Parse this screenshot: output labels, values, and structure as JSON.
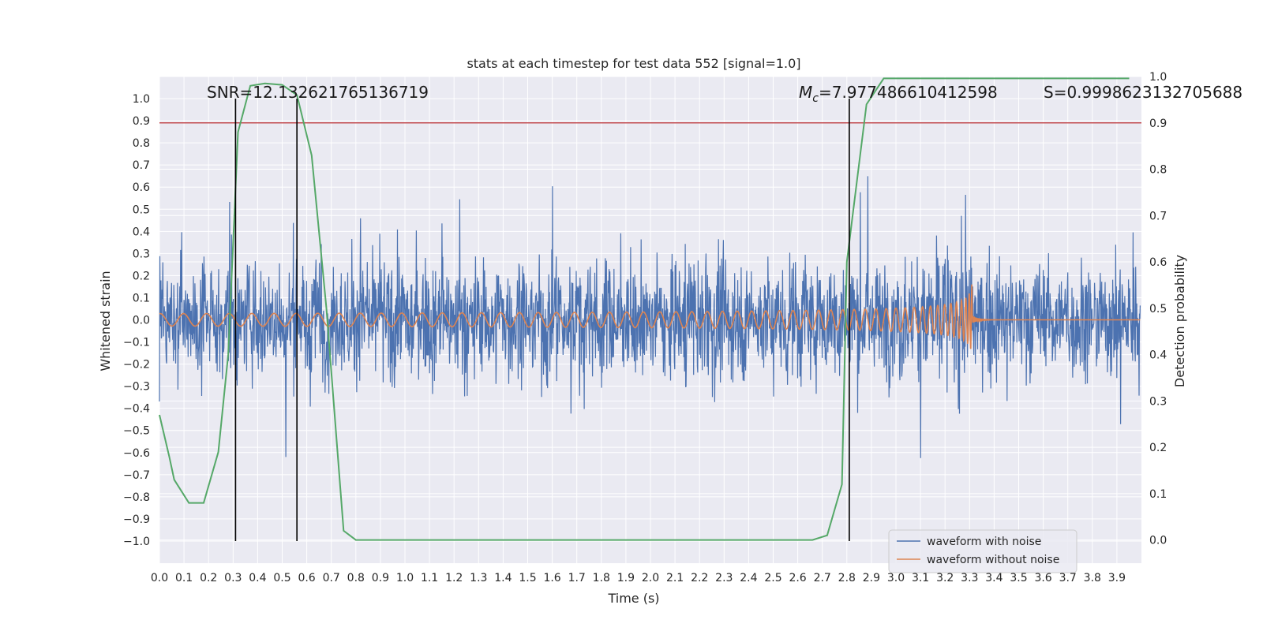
{
  "chart_data": {
    "type": "line",
    "title": "stats at each timestep for test data 552 [signal=1.0]",
    "xlabel": "Time (s)",
    "ylabel": "Whitened strain",
    "y2label": "Detection probability",
    "xlim": [
      0.0,
      4.0
    ],
    "ylim": [
      -1.1,
      1.1
    ],
    "y2lim": [
      -0.05,
      1.0
    ],
    "x_ticks": [
      "0.0",
      "0.1",
      "0.2",
      "0.3",
      "0.4",
      "0.5",
      "0.6",
      "0.7",
      "0.8",
      "0.9",
      "1.0",
      "1.1",
      "1.2",
      "1.3",
      "1.4",
      "1.5",
      "1.6",
      "1.7",
      "1.8",
      "1.9",
      "2.0",
      "2.1",
      "2.2",
      "2.3",
      "2.4",
      "2.5",
      "2.6",
      "2.7",
      "2.8",
      "2.9",
      "3.0",
      "3.1",
      "3.2",
      "3.3",
      "3.4",
      "3.5",
      "3.6",
      "3.7",
      "3.8",
      "3.9"
    ],
    "y_ticks": [
      "1.0",
      "0.9",
      "0.8",
      "0.7",
      "0.6",
      "0.5",
      "0.4",
      "0.3",
      "0.2",
      "0.1",
      "0.0",
      "−0.1",
      "−0.2",
      "−0.3",
      "−0.4",
      "−0.5",
      "−0.6",
      "−0.7",
      "−0.8",
      "−0.9",
      "−1.0"
    ],
    "y2_ticks": [
      "1.0",
      "0.9",
      "0.8",
      "0.7",
      "0.6",
      "0.5",
      "0.4",
      "0.3",
      "0.2",
      "0.1",
      "0.0"
    ],
    "grid": true,
    "legend_position": "bottom-right",
    "series": [
      {
        "name": "waveform with noise",
        "color": "#4c72b0",
        "axis": "left",
        "description": "white-noise strain, roughly within ±0.5 with spikes to ±1.0"
      },
      {
        "name": "waveform without noise",
        "color": "#dd8452",
        "axis": "left",
        "description": "inspiral chirp growing from amplitude ~0.03 to ~0.4, merging near t=3.31 s",
        "merger_time": 3.31
      },
      {
        "name": "detection probability",
        "color": "#55a868",
        "axis": "right",
        "x": [
          0.0,
          0.04,
          0.06,
          0.12,
          0.18,
          0.24,
          0.28,
          0.32,
          0.37,
          0.43,
          0.5,
          0.56,
          0.62,
          0.68,
          0.75,
          0.8,
          1.5,
          2.0,
          2.6,
          2.66,
          2.72,
          2.78,
          2.8,
          2.88,
          2.95,
          3.95
        ],
        "values": [
          0.27,
          0.18,
          0.13,
          0.08,
          0.08,
          0.19,
          0.4,
          0.88,
          0.98,
          0.985,
          0.982,
          0.96,
          0.83,
          0.5,
          0.02,
          0.0,
          0.0,
          0.0,
          0.0,
          0.0,
          0.01,
          0.12,
          0.6,
          0.94,
          0.996,
          0.996
        ]
      },
      {
        "name": "threshold",
        "color": "#c44e52",
        "axis": "right",
        "values": [
          0.9
        ]
      }
    ],
    "vertical_lines": [
      0.31,
      0.56,
      2.81
    ],
    "annotations": {
      "snr": "SNR=12.132621765136719",
      "mc": "=7.977486610412598",
      "mc_symbol": "M",
      "mc_sub": "c",
      "s": "S=0.9998623132705688"
    }
  }
}
